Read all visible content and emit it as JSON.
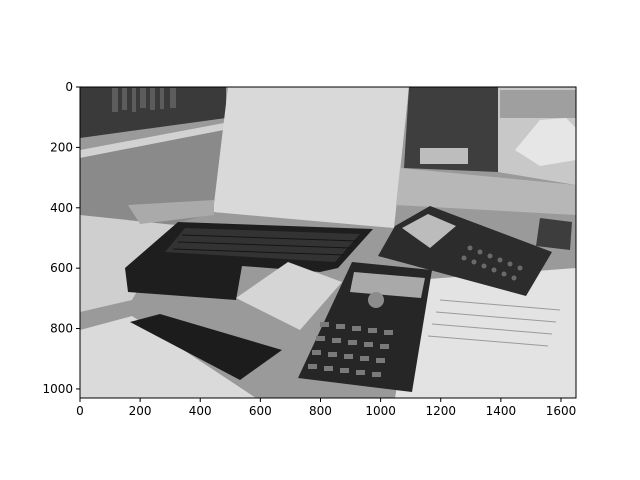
{
  "figure": {
    "image_description": "",
    "colormap": "gray",
    "x_ticks": [
      "0",
      "200",
      "400",
      "600",
      "800",
      "1000",
      "1200",
      "1400",
      "1600"
    ],
    "y_ticks": [
      "0",
      "200",
      "400",
      "600",
      "800",
      "1000"
    ],
    "x_range": [
      0,
      1650
    ],
    "y_range": [
      1030,
      0
    ]
  }
}
